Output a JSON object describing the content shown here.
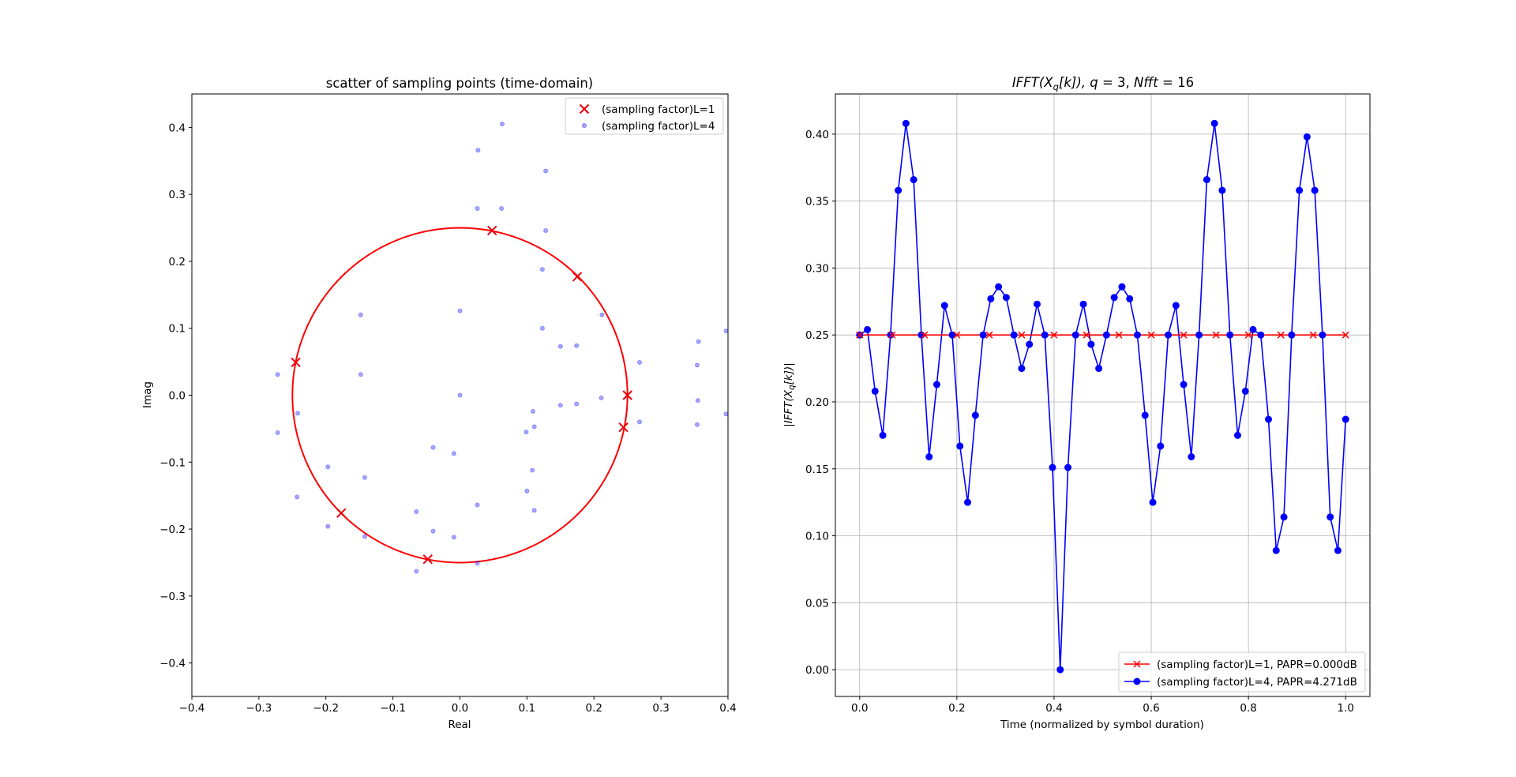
{
  "chart_data": [
    {
      "type": "scatter",
      "title": "scatter of sampling points (time-domain)",
      "xlabel": "Real",
      "ylabel": "Imag",
      "xlim": [
        -0.4,
        0.4
      ],
      "ylim": [
        -0.45,
        0.45
      ],
      "xticks": [
        -0.4,
        -0.3,
        -0.2,
        -0.1,
        0.0,
        0.1,
        0.2,
        0.3,
        0.4
      ],
      "xtick_labels": [
        "−0.4",
        "−0.3",
        "−0.2",
        "−0.1",
        "0.0",
        "0.1",
        "0.2",
        "0.3",
        "0.4"
      ],
      "yticks": [
        -0.4,
        -0.3,
        -0.2,
        -0.1,
        0.0,
        0.1,
        0.2,
        0.3,
        0.4
      ],
      "ytick_labels": [
        "−0.4",
        "−0.3",
        "−0.2",
        "−0.1",
        "0.0",
        "0.1",
        "0.2",
        "0.3",
        "0.4"
      ],
      "grid": false,
      "legend_position": "top-right",
      "circle": {
        "radius": 0.25,
        "color": "#ff0000"
      },
      "series": [
        {
          "name": "(sampling factor)L=1",
          "marker": "x",
          "color": "#e8000b",
          "points": [
            [
              0.048,
              0.246
            ],
            [
              0.175,
              0.177
            ],
            [
              0.25,
              0.0
            ],
            [
              0.244,
              -0.048
            ],
            [
              -0.048,
              -0.245
            ],
            [
              -0.177,
              -0.176
            ],
            [
              -0.245,
              0.049
            ]
          ]
        },
        {
          "name": "(sampling factor)L=4",
          "marker": "dot",
          "color": "#0000ff",
          "points": [
            [
              0.063,
              0.405
            ],
            [
              0.027,
              0.366
            ],
            [
              0.128,
              0.335
            ],
            [
              0.026,
              0.279
            ],
            [
              0.062,
              0.279
            ],
            [
              0.128,
              0.246
            ],
            [
              0.123,
              0.188
            ],
            [
              -0.148,
              0.12
            ],
            [
              0.0,
              0.126
            ],
            [
              0.212,
              0.12
            ],
            [
              0.123,
              0.1
            ],
            [
              0.15,
              0.073
            ],
            [
              0.174,
              0.074
            ],
            [
              0.268,
              0.049
            ],
            [
              0.356,
              0.08
            ],
            [
              0.397,
              0.096
            ],
            [
              0.354,
              0.045
            ],
            [
              -0.272,
              0.031
            ],
            [
              -0.148,
              0.031
            ],
            [
              0.0,
              0.0
            ],
            [
              0.211,
              -0.004
            ],
            [
              0.355,
              -0.008
            ],
            [
              0.397,
              -0.028
            ],
            [
              0.15,
              -0.015
            ],
            [
              0.174,
              -0.013
            ],
            [
              0.109,
              -0.024
            ],
            [
              -0.242,
              -0.027
            ],
            [
              -0.272,
              -0.056
            ],
            [
              0.268,
              -0.04
            ],
            [
              0.354,
              -0.044
            ],
            [
              0.111,
              -0.047
            ],
            [
              0.099,
              -0.055
            ],
            [
              -0.04,
              -0.078
            ],
            [
              -0.009,
              -0.087
            ],
            [
              -0.197,
              -0.107
            ],
            [
              -0.142,
              -0.123
            ],
            [
              0.108,
              -0.112
            ],
            [
              0.1,
              -0.143
            ],
            [
              -0.243,
              -0.152
            ],
            [
              0.026,
              -0.164
            ],
            [
              0.111,
              -0.172
            ],
            [
              -0.065,
              -0.174
            ],
            [
              -0.197,
              -0.196
            ],
            [
              -0.04,
              -0.203
            ],
            [
              -0.142,
              -0.211
            ],
            [
              -0.009,
              -0.212
            ],
            [
              0.026,
              -0.251
            ],
            [
              -0.065,
              -0.263
            ]
          ]
        }
      ]
    },
    {
      "type": "line",
      "title_parts": {
        "main": "IFFT(X",
        "sub": "q",
        "rest": "[k]), ",
        "q": "q",
        "eq1": " = 3, ",
        "nfft": "Nfft",
        "eq2": " = 16"
      },
      "xlabel": "Time (normalized by symbol duration)",
      "ylabel_parts": {
        "a": "|IFFT(X",
        "sub": "q",
        "b": "[k])|"
      },
      "xlim": [
        -0.05,
        1.05
      ],
      "ylim": [
        -0.02,
        0.43
      ],
      "xticks": [
        0.0,
        0.2,
        0.4,
        0.6,
        0.8,
        1.0
      ],
      "xtick_labels": [
        "0.0",
        "0.2",
        "0.4",
        "0.6",
        "0.8",
        "1.0"
      ],
      "yticks": [
        0.0,
        0.05,
        0.1,
        0.15,
        0.2,
        0.25,
        0.3,
        0.35,
        0.4
      ],
      "ytick_labels": [
        "0.00",
        "0.05",
        "0.10",
        "0.15",
        "0.20",
        "0.25",
        "0.30",
        "0.35",
        "0.40"
      ],
      "grid": true,
      "legend_position": "bottom-right",
      "series": [
        {
          "name": "(sampling factor)L=1, PAPR=0.000dB",
          "marker": "x",
          "color": "#ff0000",
          "x": [
            0.0,
            0.0667,
            0.1333,
            0.2,
            0.2667,
            0.3333,
            0.4,
            0.4667,
            0.5333,
            0.6,
            0.6667,
            0.7333,
            0.8,
            0.8667,
            0.9333,
            1.0
          ],
          "y": [
            0.25,
            0.25,
            0.25,
            0.25,
            0.25,
            0.25,
            0.25,
            0.25,
            0.25,
            0.25,
            0.25,
            0.25,
            0.25,
            0.25,
            0.25,
            0.25
          ]
        },
        {
          "name": "(sampling factor)L=4, PAPR=4.271dB",
          "marker": "o",
          "color": "#0000ff",
          "x": [
            0.0,
            0.0159,
            0.0317,
            0.0476,
            0.0635,
            0.0794,
            0.0952,
            0.1111,
            0.127,
            0.1429,
            0.1587,
            0.1746,
            0.1905,
            0.2063,
            0.2222,
            0.2381,
            0.254,
            0.2698,
            0.2857,
            0.3016,
            0.3175,
            0.3333,
            0.3492,
            0.3651,
            0.381,
            0.3968,
            0.4127,
            0.4286,
            0.4444,
            0.4603,
            0.4762,
            0.4921,
            0.5079,
            0.5238,
            0.5397,
            0.5556,
            0.5714,
            0.5873,
            0.6032,
            0.619,
            0.6349,
            0.6508,
            0.6667,
            0.6825,
            0.6984,
            0.7143,
            0.7302,
            0.746,
            0.7619,
            0.7778,
            0.7937,
            0.8095,
            0.8254,
            0.8413,
            0.8571,
            0.873,
            0.8889,
            0.9048,
            0.9206,
            0.9365,
            0.9524,
            0.9683,
            0.9841,
            1.0
          ],
          "y": [
            0.25,
            0.254,
            0.208,
            0.175,
            0.25,
            0.358,
            0.408,
            0.366,
            0.25,
            0.159,
            0.213,
            0.272,
            0.25,
            0.167,
            0.125,
            0.19,
            0.25,
            0.277,
            0.286,
            0.278,
            0.25,
            0.225,
            0.243,
            0.273,
            0.25,
            0.151,
            0.0,
            0.151,
            0.25,
            0.273,
            0.243,
            0.225,
            0.25,
            0.278,
            0.286,
            0.277,
            0.25,
            0.19,
            0.125,
            0.167,
            0.25,
            0.272,
            0.213,
            0.159,
            0.25,
            0.366,
            0.408,
            0.358,
            0.25,
            0.175,
            0.208,
            0.254,
            0.25,
            0.187,
            0.089,
            0.114,
            0.25,
            0.358,
            0.398,
            0.358,
            0.25,
            0.114,
            0.089,
            0.187
          ]
        }
      ]
    }
  ]
}
